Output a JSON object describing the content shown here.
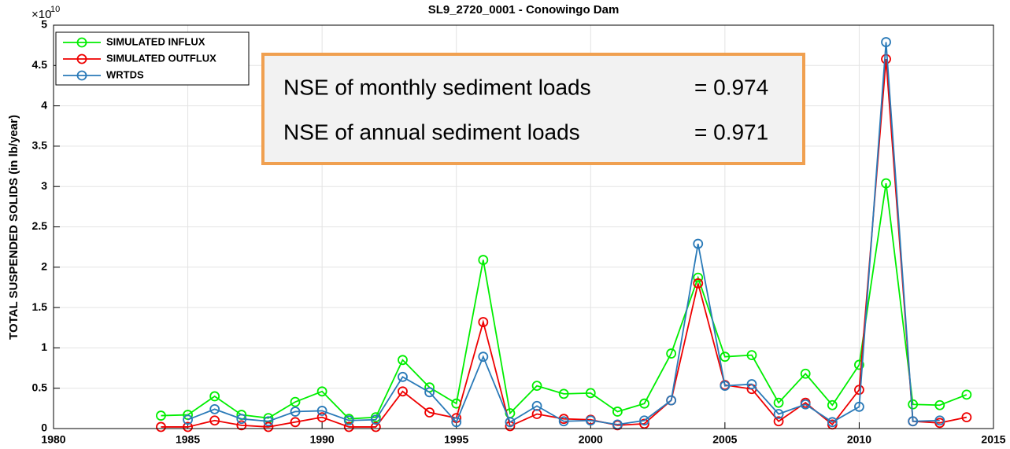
{
  "chart_data": {
    "type": "line",
    "title": "SL9_2720_0001  -  Conowingo Dam",
    "y_label": "TOTAL SUSPENDED SOLIDS (in lb/year)",
    "y_exponent": {
      "base": "×10",
      "power": "10"
    },
    "x": [
      1984,
      1985,
      1986,
      1987,
      1988,
      1989,
      1990,
      1991,
      1992,
      1993,
      1994,
      1995,
      1996,
      1997,
      1998,
      1999,
      2000,
      2001,
      2002,
      2003,
      2004,
      2005,
      2006,
      2007,
      2008,
      2009,
      2010,
      2011,
      2012,
      2013,
      2014
    ],
    "series": [
      {
        "name": "SIMULATED INFLUX",
        "color": "#00ee00",
        "values": [
          0.16,
          0.17,
          0.4,
          0.17,
          0.13,
          0.33,
          0.46,
          0.12,
          0.14,
          0.85,
          0.51,
          0.31,
          2.09,
          0.19,
          0.53,
          0.43,
          0.44,
          0.21,
          0.31,
          0.93,
          1.87,
          0.89,
          0.91,
          0.32,
          0.68,
          0.29,
          0.79,
          3.04,
          0.3,
          0.29,
          0.42
        ]
      },
      {
        "name": "SIMULATED OUTFLUX",
        "color": "#ee0000",
        "values": [
          0.02,
          0.02,
          0.1,
          0.04,
          0.02,
          0.08,
          0.14,
          0.02,
          0.02,
          0.46,
          0.2,
          0.13,
          1.32,
          0.03,
          0.18,
          0.12,
          0.11,
          0.04,
          0.06,
          0.35,
          1.8,
          0.54,
          0.49,
          0.09,
          0.32,
          0.05,
          0.48,
          4.58,
          0.09,
          0.07,
          0.14
        ]
      },
      {
        "name": "WRTDS",
        "color": "#2a7ab8",
        "values": [
          null,
          0.11,
          0.24,
          0.12,
          0.09,
          0.21,
          0.22,
          0.1,
          0.11,
          0.64,
          0.45,
          0.08,
          0.89,
          0.08,
          0.28,
          0.09,
          0.1,
          0.05,
          0.1,
          0.35,
          2.29,
          0.53,
          0.55,
          0.18,
          0.3,
          0.08,
          0.27,
          4.79,
          0.09,
          0.1,
          null
        ]
      }
    ],
    "xlim": [
      1980,
      2015
    ],
    "xticks": [
      1980,
      1985,
      1990,
      1995,
      2000,
      2005,
      2010,
      2015
    ],
    "ylim": [
      0,
      5
    ],
    "yticks": [
      0,
      0.5,
      1,
      1.5,
      2,
      2.5,
      3,
      3.5,
      4,
      4.5,
      5
    ],
    "grid": true,
    "legend": "upper left",
    "annotations": [
      {
        "text": "NSE of monthly sediment loads",
        "value": "= 0.974"
      },
      {
        "text": "NSE of annual sediment loads",
        "value": "= 0.971"
      }
    ]
  }
}
